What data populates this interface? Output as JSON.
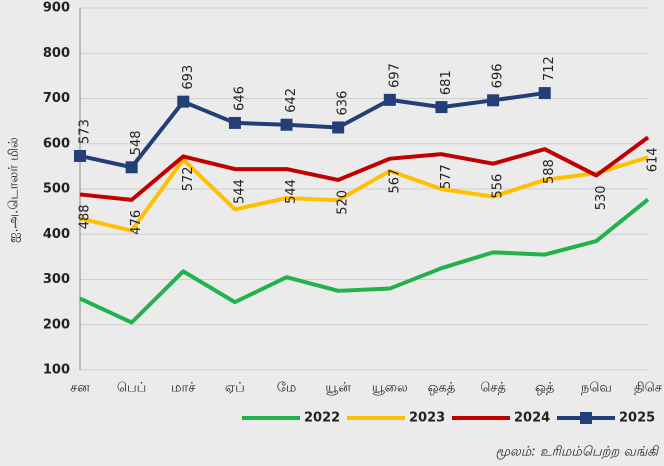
{
  "chart_data": {
    "type": "line",
    "y_label": "ஐ.அ.டொலர் மில்",
    "source": "மூலம்: உரிமம்பெற்ற வங்கி",
    "categories": [
      "சன",
      "பெப்",
      "மாச்",
      "ஏப்",
      "மே",
      "யூன்",
      "யூலை",
      "ஒகத்",
      "செத்",
      "ஒத்",
      "நவெ",
      "திசெ"
    ],
    "ylim": [
      100,
      900
    ],
    "yticks": [
      100,
      200,
      300,
      400,
      500,
      600,
      700,
      800,
      900
    ],
    "grid": true,
    "series": [
      {
        "name": "2022",
        "color": "#22b24c",
        "values": [
          258,
          205,
          318,
          250,
          305,
          275,
          280,
          325,
          360,
          355,
          385,
          477
        ]
      },
      {
        "name": "2023",
        "color": "#ffc000",
        "values": [
          435,
          408,
          565,
          455,
          480,
          475,
          540,
          500,
          483,
          520,
          535,
          570
        ]
      },
      {
        "name": "2024",
        "color": "#c00000",
        "label_color": "#c00000",
        "label_position": "below",
        "values": [
          488,
          476,
          572,
          544,
          544,
          520,
          567,
          577,
          556,
          588,
          530,
          614
        ]
      },
      {
        "name": "2025",
        "color": "#243f77",
        "marker": "square",
        "label_color": "#2f7fc1",
        "label_position": "above",
        "values": [
          573,
          548,
          693,
          646,
          642,
          636,
          697,
          681,
          696,
          712,
          null,
          null
        ]
      }
    ]
  }
}
